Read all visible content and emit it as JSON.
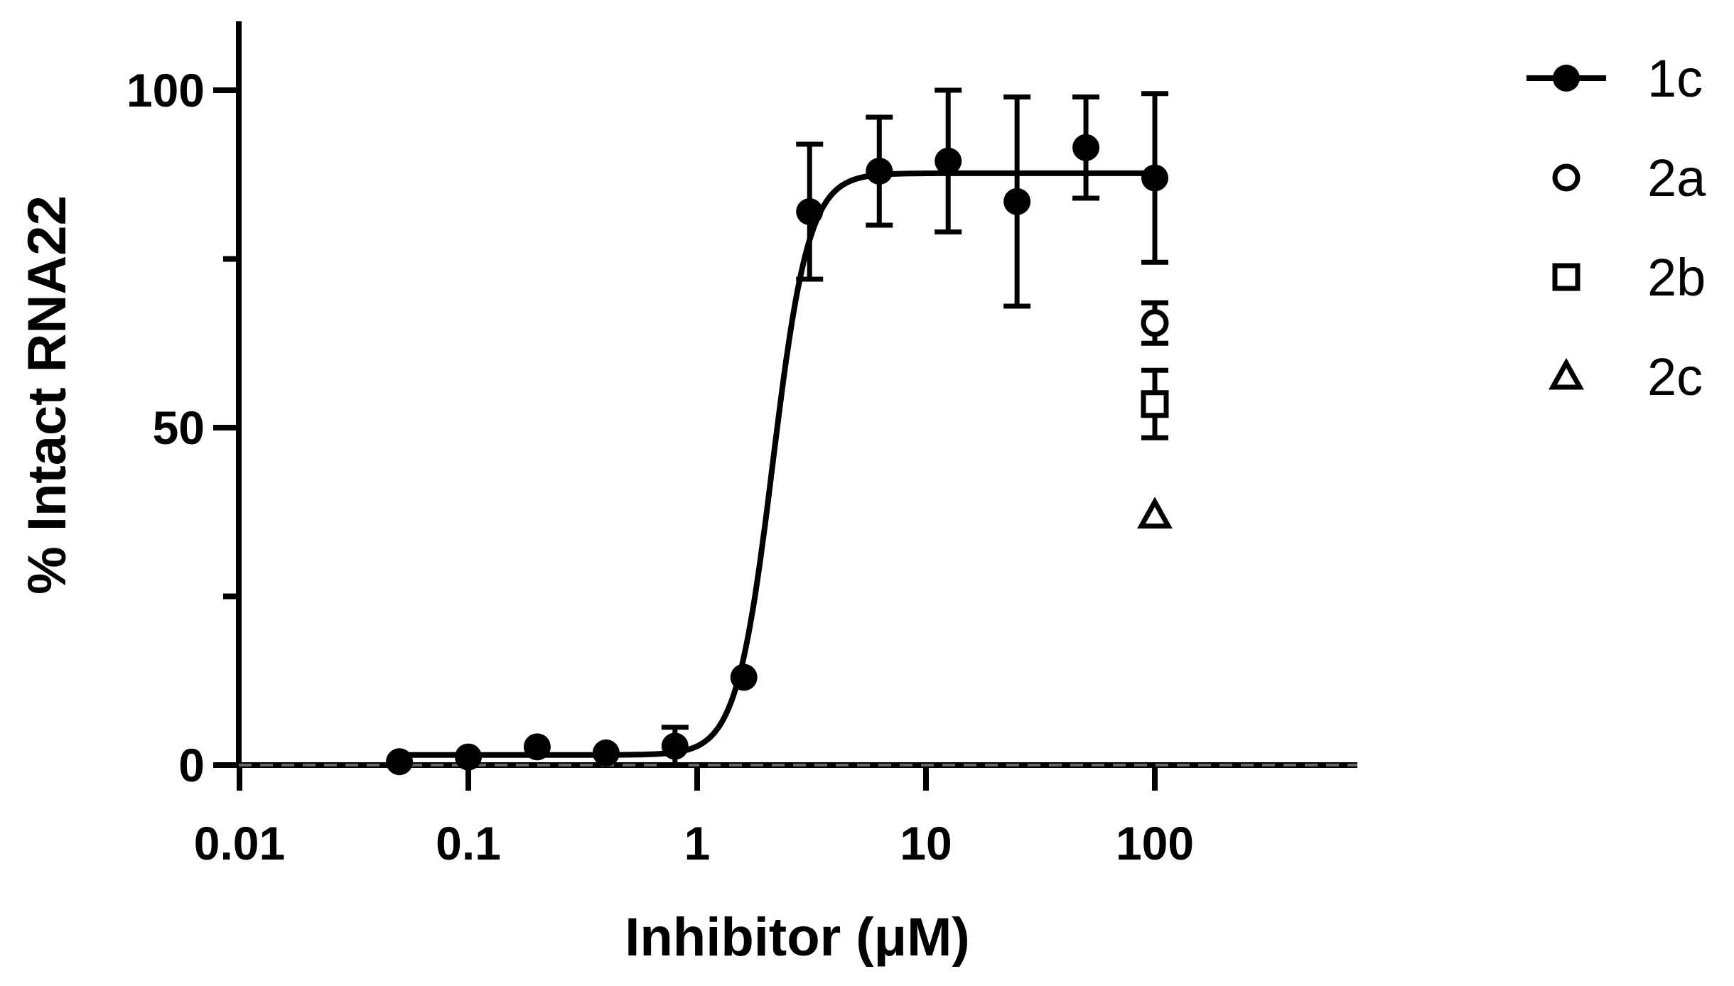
{
  "chart_data": {
    "type": "scatter",
    "xlabel": "Inhibitor (μM)",
    "ylabel": "% Intact RNA22",
    "x_scale": "log",
    "xlim": [
      0.01,
      800
    ],
    "ylim": [
      0,
      110
    ],
    "x_ticks": [
      {
        "value": 0.01,
        "label": "0.01"
      },
      {
        "value": 0.1,
        "label": "0.1"
      },
      {
        "value": 1,
        "label": "1"
      },
      {
        "value": 10,
        "label": "10"
      },
      {
        "value": 100,
        "label": "100"
      }
    ],
    "y_ticks": [
      {
        "value": 0,
        "label": "0"
      },
      {
        "value": 50,
        "label": "50"
      },
      {
        "value": 100,
        "label": "100"
      }
    ],
    "y_minor_ticks": [
      25,
      75
    ],
    "grid": false,
    "legend_position": "right",
    "series": [
      {
        "name": "1c",
        "marker": "filled-circle",
        "fit_line": true,
        "points": [
          {
            "x": 0.05,
            "y": 0.5,
            "err": 0
          },
          {
            "x": 0.1,
            "y": 1.2,
            "err": 0
          },
          {
            "x": 0.2,
            "y": 2.7,
            "err": 0
          },
          {
            "x": 0.4,
            "y": 1.8,
            "err": 0
          },
          {
            "x": 0.8,
            "y": 2.8,
            "err": 2.8
          },
          {
            "x": 1.6,
            "y": 13,
            "err": 0
          },
          {
            "x": 3.1,
            "y": 82,
            "err": 10
          },
          {
            "x": 6.25,
            "y": 88,
            "err": 8
          },
          {
            "x": 12.5,
            "y": 89.5,
            "err": 10.5
          },
          {
            "x": 25,
            "y": 83.5,
            "err": 15.5
          },
          {
            "x": 50,
            "y": 91.5,
            "err": 7.5
          },
          {
            "x": 100,
            "y": 87,
            "err": 12.5
          }
        ]
      },
      {
        "name": "2a",
        "marker": "open-circle",
        "points": [
          {
            "x": 100,
            "y": 65.5,
            "err": 3
          }
        ]
      },
      {
        "name": "2b",
        "marker": "open-square",
        "points": [
          {
            "x": 100,
            "y": 53.5,
            "err": 5
          }
        ]
      },
      {
        "name": "2c",
        "marker": "open-triangle",
        "points": [
          {
            "x": 100,
            "y": 37,
            "err": 0
          }
        ]
      }
    ],
    "fit": {
      "bottom": 1.5,
      "top": 87.7,
      "log_ec50": 0.33,
      "hill": 5.5
    }
  }
}
